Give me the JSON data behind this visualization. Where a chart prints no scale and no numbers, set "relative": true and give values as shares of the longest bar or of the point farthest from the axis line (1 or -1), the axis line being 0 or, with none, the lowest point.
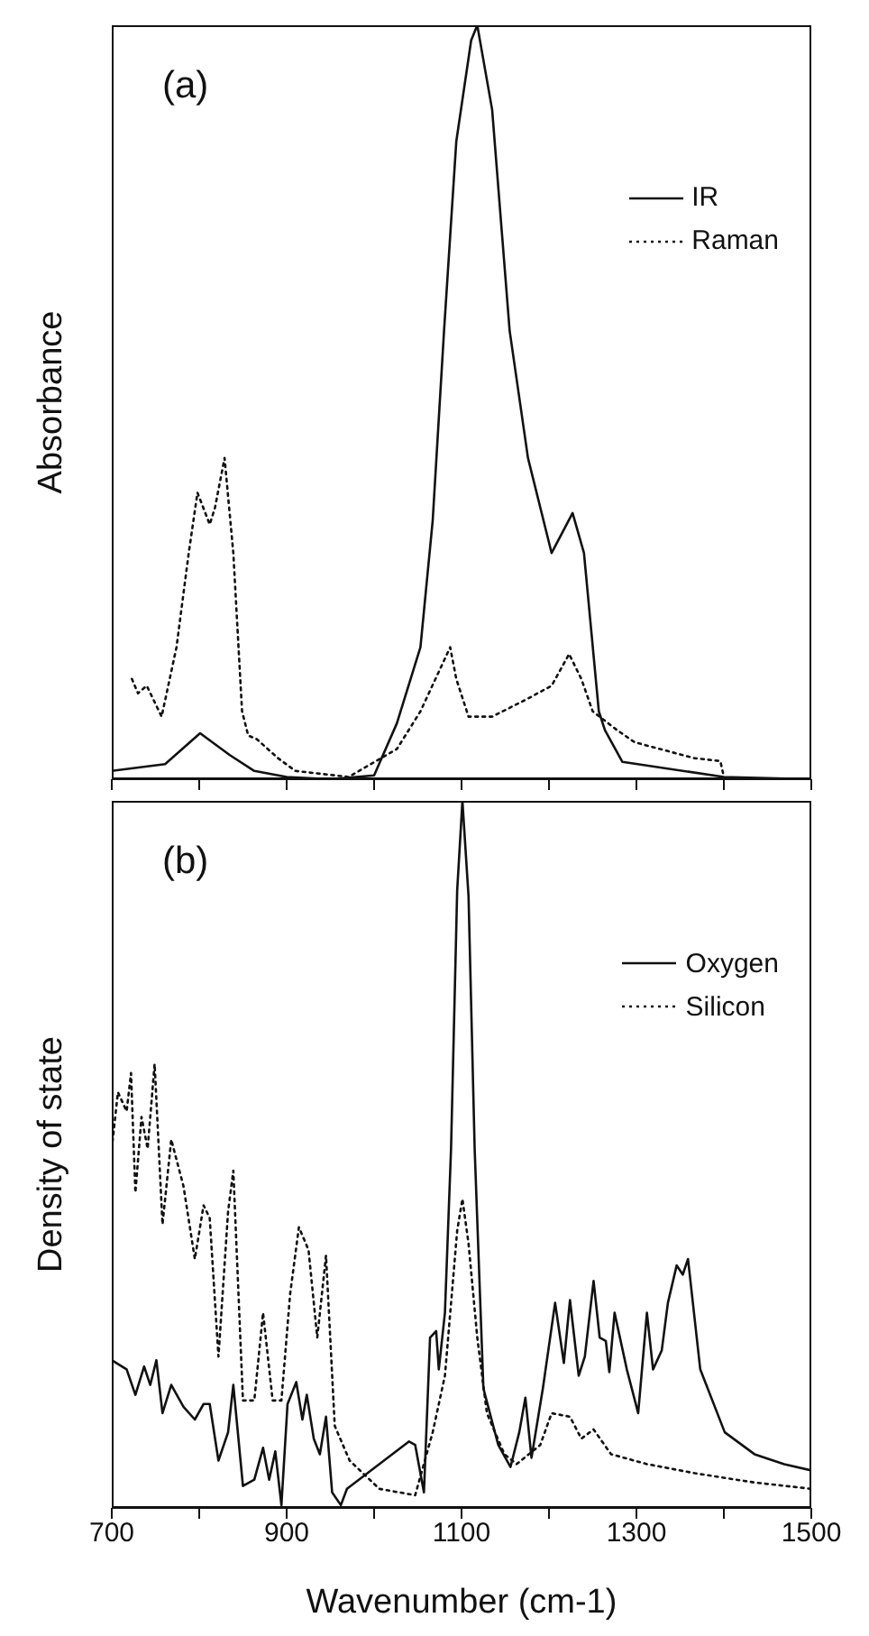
{
  "chart_data": [
    {
      "type": "line",
      "annotations": [
        "(a)"
      ],
      "ylabel": "Absorbance",
      "relative": true,
      "xlim": [
        700,
        1500
      ],
      "xticks": [
        700,
        {
          "value": 800,
          "label": null
        },
        900,
        {
          "value": 1000,
          "label": null
        },
        1100,
        {
          "value": 1200,
          "label": null
        },
        1300,
        {
          "value": 1400,
          "label": null
        },
        1500
      ],
      "tick_labels": false,
      "legend": "top right",
      "series": [
        {
          "name": "IR",
          "color": "#111111",
          "line_style": "solid",
          "x": [
            700,
            761,
            801,
            835,
            863,
            900,
            950,
            1000,
            1026,
            1053,
            1067,
            1080,
            1094,
            1111,
            1118,
            1135,
            1155,
            1176,
            1203,
            1227,
            1240,
            1257,
            1264,
            1284,
            1400,
            1500
          ],
          "values": [
            0.011,
            0.02,
            0.061,
            0.032,
            0.011,
            0.003,
            0,
            0.005,
            0.074,
            0.175,
            0.343,
            0.595,
            0.846,
            0.98,
            1.0,
            0.888,
            0.595,
            0.426,
            0.3,
            0.353,
            0.3,
            0.09,
            0.065,
            0.023,
            0.003,
            0
          ]
        },
        {
          "name": "Raman",
          "color": "#111111",
          "line_style": "dotted",
          "x": [
            723,
            730,
            740,
            757,
            774,
            788,
            798,
            812,
            818,
            829,
            839,
            849,
            856,
            866,
            890,
            910,
            971,
            1026,
            1053,
            1077,
            1087,
            1094,
            1108,
            1135,
            1176,
            1203,
            1223,
            1237,
            1250,
            1278,
            1298,
            1366,
            1396,
            1400
          ],
          "values": [
            0.133,
            0.114,
            0.124,
            0.083,
            0.175,
            0.3,
            0.38,
            0.338,
            0.36,
            0.426,
            0.3,
            0.09,
            0.058,
            0.053,
            0.028,
            0.011,
            0.003,
            0.04,
            0.09,
            0.15,
            0.175,
            0.133,
            0.083,
            0.083,
            0.107,
            0.124,
            0.166,
            0.133,
            0.09,
            0.065,
            0.049,
            0.028,
            0.024,
            0.003
          ]
        }
      ]
    },
    {
      "type": "line",
      "annotations": [
        "(b)"
      ],
      "ylabel": "Density of state",
      "xlabel": "Wavenumber (cm-1)",
      "relative": true,
      "xlim": [
        700,
        1500
      ],
      "xticks": [
        700,
        {
          "value": 800,
          "label": null
        },
        900,
        {
          "value": 1000,
          "label": null
        },
        1100,
        {
          "value": 1200,
          "label": null
        },
        1300,
        {
          "value": 1400,
          "label": null
        },
        1500
      ],
      "tick_labels": "x",
      "legend": "top right",
      "series": [
        {
          "name": "Oxygen",
          "color": "#111111",
          "line_style": "solid",
          "x": [
            700,
            717,
            727,
            737,
            744,
            751,
            758,
            768,
            782,
            795,
            805,
            812,
            822,
            833,
            839,
            850,
            863,
            873,
            880,
            887,
            894,
            901,
            911,
            918,
            923,
            931,
            938,
            945,
            952,
            962,
            969,
            1040,
            1047,
            1057,
            1064,
            1071,
            1074,
            1081,
            1088,
            1095,
            1101,
            1108,
            1115,
            1125,
            1142,
            1156,
            1166,
            1173,
            1180,
            1193,
            1207,
            1217,
            1224,
            1234,
            1241,
            1251,
            1258,
            1265,
            1269,
            1275,
            1289,
            1302,
            1312,
            1319,
            1329,
            1336,
            1346,
            1353,
            1359,
            1373,
            1401,
            1435,
            1469,
            1500
          ],
          "values": [
            0.209,
            0.196,
            0.16,
            0.2,
            0.174,
            0.209,
            0.134,
            0.174,
            0.143,
            0.125,
            0.147,
            0.147,
            0.067,
            0.107,
            0.174,
            0.031,
            0.04,
            0.085,
            0.04,
            0.08,
            0.004,
            0.147,
            0.178,
            0.125,
            0.16,
            0.098,
            0.076,
            0.129,
            0.022,
            0.004,
            0.027,
            0.094,
            0.089,
            0.022,
            0.241,
            0.25,
            0.196,
            0.276,
            0.508,
            0.873,
            1.0,
            0.865,
            0.508,
            0.169,
            0.089,
            0.058,
            0.107,
            0.156,
            0.071,
            0.169,
            0.29,
            0.205,
            0.294,
            0.187,
            0.214,
            0.321,
            0.241,
            0.236,
            0.192,
            0.276,
            0.196,
            0.134,
            0.276,
            0.196,
            0.223,
            0.29,
            0.343,
            0.33,
            0.352,
            0.196,
            0.107,
            0.076,
            0.062,
            0.053
          ]
        },
        {
          "name": "Silicon",
          "color": "#111111",
          "line_style": "dotted",
          "x": [
            700,
            707,
            717,
            722,
            727,
            734,
            741,
            749,
            758,
            768,
            782,
            795,
            805,
            812,
            822,
            833,
            839,
            850,
            863,
            873,
            884,
            894,
            904,
            914,
            925,
            935,
            945,
            955,
            972,
            1006,
            1047,
            1067,
            1081,
            1095,
            1101,
            1108,
            1118,
            1129,
            1149,
            1163,
            1190,
            1203,
            1224,
            1237,
            1251,
            1271,
            1312,
            1367,
            1435,
            1500
          ],
          "values": [
            0.508,
            0.588,
            0.561,
            0.615,
            0.446,
            0.553,
            0.508,
            0.628,
            0.401,
            0.521,
            0.455,
            0.352,
            0.428,
            0.41,
            0.214,
            0.419,
            0.477,
            0.152,
            0.152,
            0.276,
            0.152,
            0.152,
            0.303,
            0.397,
            0.365,
            0.241,
            0.357,
            0.116,
            0.067,
            0.027,
            0.018,
            0.107,
            0.187,
            0.392,
            0.437,
            0.374,
            0.241,
            0.134,
            0.076,
            0.062,
            0.089,
            0.134,
            0.129,
            0.098,
            0.111,
            0.076,
            0.062,
            0.049,
            0.036,
            0.027
          ]
        }
      ]
    }
  ]
}
